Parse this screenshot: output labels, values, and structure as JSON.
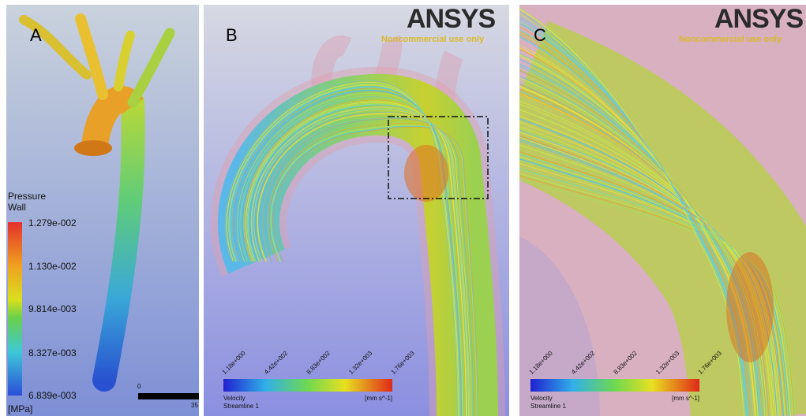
{
  "panels": [
    {
      "label": "A",
      "legend": {
        "title": [
          "Pressure",
          "Wall"
        ],
        "ticks": [
          "1.279e-002",
          "1.130e-002",
          "9.814e-003",
          "8.327e-003",
          "6.839e-003"
        ],
        "unit": "[MPa]"
      },
      "scale_bar": [
        "0",
        "35"
      ]
    },
    {
      "label": "B",
      "logo": "ANSYS",
      "watermark": "Noncommercial use only",
      "legend": {
        "title": [
          "Velocity",
          "Streamline 1"
        ],
        "ticks": [
          "1.18e+000",
          "4.42e+002",
          "8.83e+002",
          "1.32e+003",
          "1.76e+003"
        ],
        "unit": "[mm s^-1]"
      }
    },
    {
      "label": "C",
      "logo": "ANSYS",
      "watermark": "Noncommercial use only",
      "legend": {
        "title": [
          "Velocity",
          "Streamline 1"
        ],
        "ticks": [
          "1.18e+000",
          "4.42e+002",
          "8.83e+002",
          "1.32e+003",
          "1.76e+003"
        ],
        "unit": "[mm s^-1]"
      }
    }
  ]
}
